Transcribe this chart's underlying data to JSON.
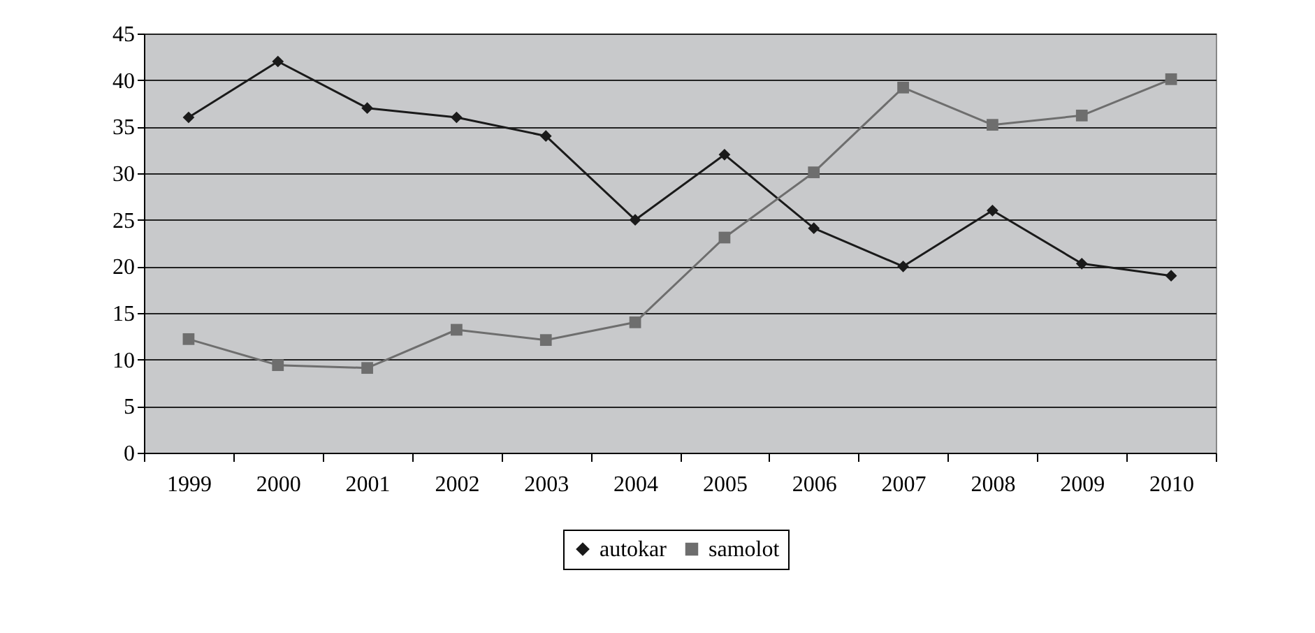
{
  "chart_data": {
    "type": "line",
    "categories": [
      "1999",
      "2000",
      "2001",
      "2002",
      "2003",
      "2004",
      "2005",
      "2006",
      "2007",
      "2008",
      "2009",
      "2010"
    ],
    "series": [
      {
        "name": "autokar",
        "color": "#1a1a1a",
        "marker": "diamond",
        "values": [
          36,
          42,
          37,
          36,
          34,
          25,
          32,
          24.1,
          20,
          26,
          20.3,
          19
        ]
      },
      {
        "name": "samolot",
        "color": "#6e6e6e",
        "marker": "square",
        "values": [
          12.2,
          9.4,
          9.1,
          13.2,
          12.1,
          14,
          23.1,
          30.1,
          39.2,
          35.2,
          36.2,
          40.1
        ]
      }
    ],
    "ylim": [
      0,
      45
    ],
    "yticks": [
      0,
      5,
      10,
      15,
      20,
      25,
      30,
      35,
      40,
      45
    ],
    "grid": "y",
    "legend": "bottom",
    "line_style": "solid"
  }
}
